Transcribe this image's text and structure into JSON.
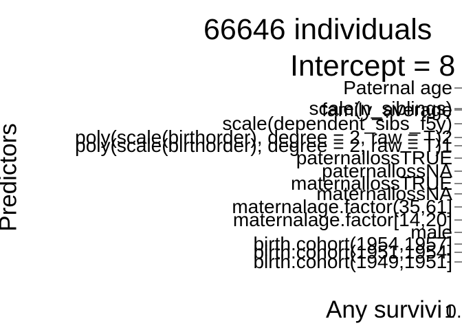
{
  "chart_data": {
    "type": "scatter",
    "title": "66646 individuals",
    "subtitle": "Intercept = 8",
    "xlabel": "Any survivi",
    "ylabel": "Predictors",
    "categories": [
      "Paternal age",
      "scale(n_siblings)",
      "family_average",
      "scale(dependent_sibs_f5y)",
      "poly(scale(birthorder), degree = 2, raw = T)2",
      "poly(scale(birthorder), degree = 2, raw = T)1",
      "paternallossTRUE",
      "paternallossNA",
      "maternallossTRUE",
      "maternallossNA",
      "maternalage.factor(35,61]",
      "maternalage.factor[14,20]",
      "male",
      "birth.cohort(1954,1957]",
      "birth.cohort(1951,1954]",
      "birth.cohort(1949,1951]"
    ],
    "x_ticks": [
      "1",
      "0."
    ],
    "grid": false,
    "legend": "none"
  }
}
